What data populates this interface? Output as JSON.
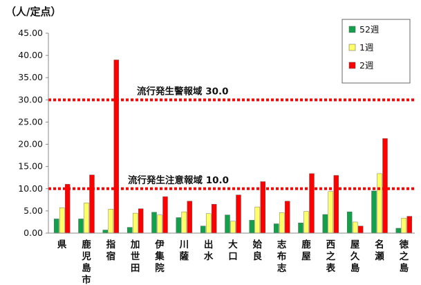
{
  "chart_data": {
    "type": "bar",
    "ylabel": "（人/定点）",
    "ylim": [
      0,
      45
    ],
    "ytick_step": 5,
    "ytick_labels": [
      "0.00",
      "5.00",
      "10.00",
      "15.00",
      "20.00",
      "25.00",
      "30.00",
      "35.00",
      "40.00",
      "45.00"
    ],
    "categories": [
      "県",
      "鹿児島市",
      "指宿",
      "加世田",
      "伊集院",
      "川薩",
      "出水",
      "大口",
      "姶良",
      "志布志",
      "鹿屋",
      "西之表",
      "屋久島",
      "名瀬",
      "徳之島"
    ],
    "series": [
      {
        "name": "52週",
        "color": "#13a04b",
        "values": [
          3.2,
          3.2,
          0.7,
          1.3,
          4.7,
          3.5,
          1.6,
          4.1,
          2.9,
          2.1,
          2.3,
          4.2,
          4.8,
          9.5,
          1.1
        ]
      },
      {
        "name": "1週",
        "color": "#ffff66",
        "values": [
          5.7,
          6.8,
          5.4,
          4.5,
          4.1,
          4.8,
          4.4,
          2.7,
          5.9,
          4.6,
          4.9,
          9.4,
          2.5,
          13.4,
          3.4
        ]
      },
      {
        "name": "2週",
        "color": "#ff0000",
        "values": [
          11.0,
          13.1,
          39.0,
          5.5,
          8.2,
          7.2,
          6.5,
          8.6,
          11.6,
          7.2,
          13.4,
          13.0,
          1.6,
          21.3,
          3.8
        ]
      }
    ],
    "annotations": [
      {
        "label": "流行発生警報域",
        "value": "30.0",
        "y": 30.0
      },
      {
        "label": "流行発生注意報域",
        "value": "10.0",
        "y": 10.0
      }
    ],
    "legend": "top-right",
    "grid": false
  }
}
